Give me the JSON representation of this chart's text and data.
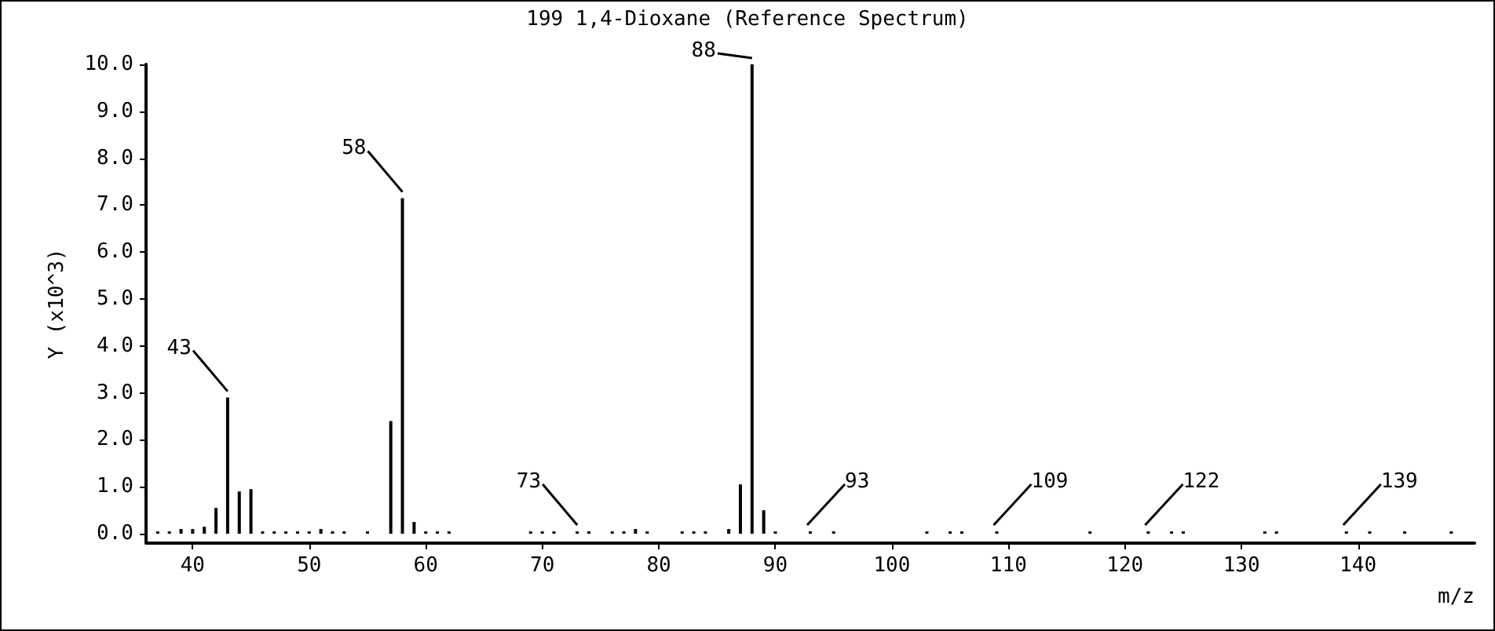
{
  "chart_data": {
    "type": "bar",
    "title": "199 1,4-Dioxane (Reference Spectrum)",
    "xlabel": "m/z",
    "ylabel": "Y (x10^3)",
    "color": "#000000",
    "x": [
      37,
      38,
      39,
      40,
      41,
      42,
      43,
      44,
      45,
      46,
      47,
      48,
      49,
      50,
      51,
      52,
      53,
      55,
      57,
      58,
      59,
      60,
      61,
      62,
      69,
      70,
      71,
      73,
      74,
      76,
      77,
      78,
      79,
      82,
      83,
      84,
      86,
      87,
      88,
      89,
      90,
      93,
      95,
      103,
      105,
      106,
      109,
      117,
      122,
      124,
      125,
      132,
      133,
      139,
      141,
      144,
      148
    ],
    "values": [
      0.05,
      0.05,
      0.1,
      0.1,
      0.15,
      0.55,
      2.9,
      0.9,
      0.95,
      0.05,
      0.05,
      0.05,
      0.05,
      0.05,
      0.1,
      0.05,
      0.05,
      0.05,
      2.4,
      7.15,
      0.25,
      0.05,
      0.05,
      0.05,
      0.05,
      0.05,
      0.05,
      0.05,
      0.05,
      0.05,
      0.05,
      0.1,
      0.05,
      0.05,
      0.05,
      0.05,
      0.1,
      1.05,
      10,
      0.5,
      0.05,
      0.05,
      0.05,
      0.05,
      0.05,
      0.05,
      0.05,
      0.05,
      0.05,
      0.05,
      0.05,
      0.05,
      0.05,
      0.05,
      0.05,
      0.05,
      0.05
    ],
    "xlim": [
      36,
      150
    ],
    "xticks": [
      40,
      50,
      60,
      70,
      80,
      90,
      100,
      110,
      120,
      130,
      140
    ],
    "ylim": [
      -0.2,
      10
    ],
    "yticks": [
      {
        "value": 0,
        "label": "0.0"
      },
      {
        "value": 1,
        "label": "1.0"
      },
      {
        "value": 2,
        "label": "2.0"
      },
      {
        "value": 3,
        "label": "3.0"
      },
      {
        "value": 4,
        "label": "4.0"
      },
      {
        "value": 5,
        "label": "5.0"
      },
      {
        "value": 6,
        "label": "6.0"
      },
      {
        "value": 7,
        "label": "7.0"
      },
      {
        "value": 8,
        "label": "8.0"
      },
      {
        "value": 9,
        "label": "9.0"
      },
      {
        "value": 10,
        "label": "10.0"
      }
    ],
    "annotations": [
      {
        "text": "43",
        "x": 43,
        "y": 2.9
      },
      {
        "text": "58",
        "x": 58,
        "y": 7.15
      },
      {
        "text": "88",
        "x": 88,
        "y": 10
      },
      {
        "text": "73",
        "x": 73,
        "y": 0.05
      },
      {
        "text": "93",
        "x": 93,
        "y": 0.05
      },
      {
        "text": "109",
        "x": 109,
        "y": 0.05
      },
      {
        "text": "122",
        "x": 122,
        "y": 0.05
      },
      {
        "text": "139",
        "x": 139,
        "y": 0.05
      }
    ],
    "grid": false
  }
}
